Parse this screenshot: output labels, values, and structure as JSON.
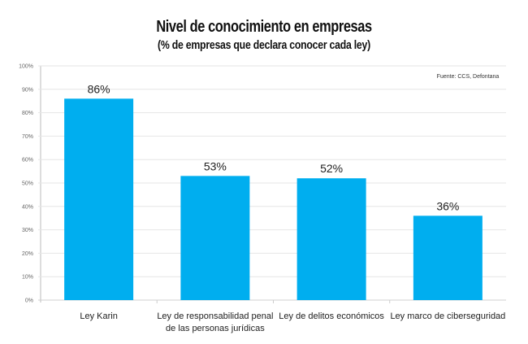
{
  "chart_data": {
    "type": "bar",
    "title": "Nivel de conocimiento en empresas",
    "subtitle": "(% de empresas que declara conocer cada ley)",
    "source": "Fuente: CCS, Defontana",
    "categories": [
      [
        "Ley Karin"
      ],
      [
        "Ley de responsabilidad penal",
        "de las personas jurídicas"
      ],
      [
        "Ley de delitos económicos"
      ],
      [
        "Ley marco de ciberseguridad"
      ]
    ],
    "values": [
      86,
      53,
      52,
      36
    ],
    "data_labels": [
      "86%",
      "53%",
      "52%",
      "36%"
    ],
    "ylim": [
      0,
      100
    ],
    "yticks": [
      0,
      10,
      20,
      30,
      40,
      50,
      60,
      70,
      80,
      90,
      100
    ],
    "ytick_labels": [
      "0%",
      "10%",
      "20%",
      "30%",
      "40%",
      "50%",
      "60%",
      "70%",
      "80%",
      "90%",
      "100%"
    ],
    "xlabel": "",
    "ylabel": "",
    "grid": true,
    "legend": "none",
    "bar_color": "#00AEEF"
  }
}
